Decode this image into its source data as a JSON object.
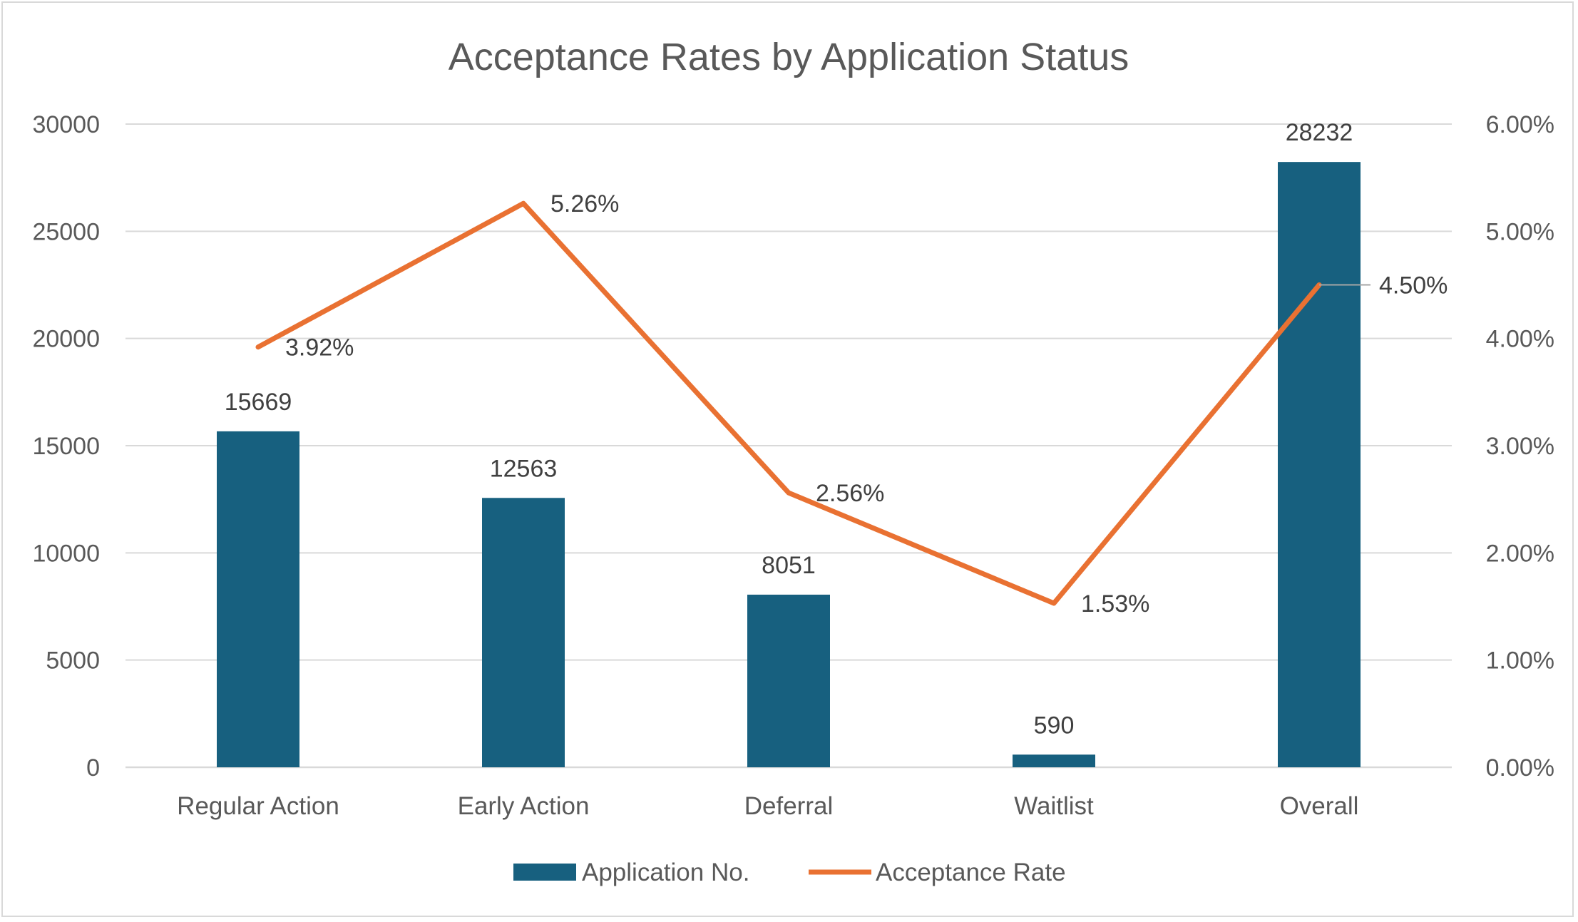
{
  "chart_data": {
    "type": "bar",
    "title": "Acceptance Rates by Application Status",
    "categories": [
      "Regular Action",
      "Early Action",
      "Deferral",
      "Waitlist",
      "Overall"
    ],
    "series": [
      {
        "name": "Application No.",
        "type": "bar",
        "axis": "left",
        "color": "#17607f",
        "values": [
          15669,
          12563,
          8051,
          590,
          28232
        ],
        "labels": [
          "15669",
          "12563",
          "8051",
          "590",
          "28232"
        ]
      },
      {
        "name": "Acceptance Rate",
        "type": "line",
        "axis": "right",
        "color": "#e97132",
        "values": [
          3.92,
          5.26,
          2.56,
          1.53,
          4.5
        ],
        "labels": [
          "3.92%",
          "5.26%",
          "2.56%",
          "1.53%",
          "4.50%"
        ]
      }
    ],
    "y_left": {
      "min": 0,
      "max": 30000,
      "ticks": [
        0,
        5000,
        10000,
        15000,
        20000,
        25000,
        30000
      ],
      "tick_labels": [
        "0",
        "5000",
        "10000",
        "15000",
        "20000",
        "25000",
        "30000"
      ]
    },
    "y_right": {
      "min": 0,
      "max": 6,
      "ticks": [
        0,
        1,
        2,
        3,
        4,
        5,
        6
      ],
      "tick_labels": [
        "0.00%",
        "1.00%",
        "2.00%",
        "3.00%",
        "4.00%",
        "5.00%",
        "6.00%"
      ]
    },
    "grid": true,
    "legend_position": "bottom",
    "gridline_color": "#d9d9d9"
  }
}
